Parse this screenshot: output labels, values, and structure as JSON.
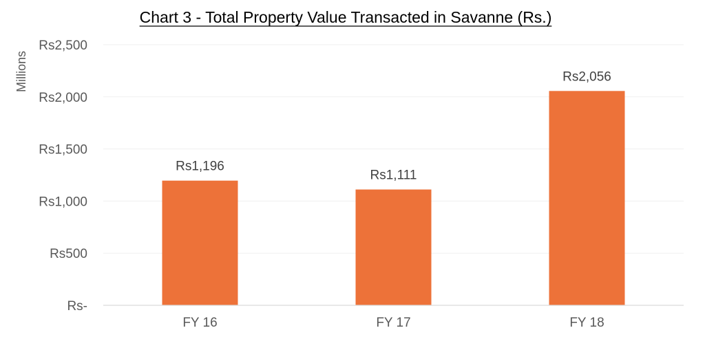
{
  "chart_data": {
    "type": "bar",
    "title": "Chart 3 - Total Property Value Transacted in Savanne (Rs.)",
    "xlabel": "",
    "ylabel": "Millions",
    "categories": [
      "FY 16",
      "FY 17",
      "FY 18"
    ],
    "values": [
      1196,
      1111,
      2056
    ],
    "data_labels": [
      "Rs1,196",
      "Rs1,111",
      "Rs2,056"
    ],
    "ylim": [
      0,
      2500
    ],
    "y_ticks": [
      0,
      500,
      1000,
      1500,
      2000,
      2500
    ],
    "y_tick_labels": [
      "Rs-",
      "Rs500",
      "Rs1,000",
      "Rs1,500",
      "Rs2,000",
      "Rs2,500"
    ],
    "grid": true,
    "legend": "none",
    "bar_color": "#ED7239"
  }
}
